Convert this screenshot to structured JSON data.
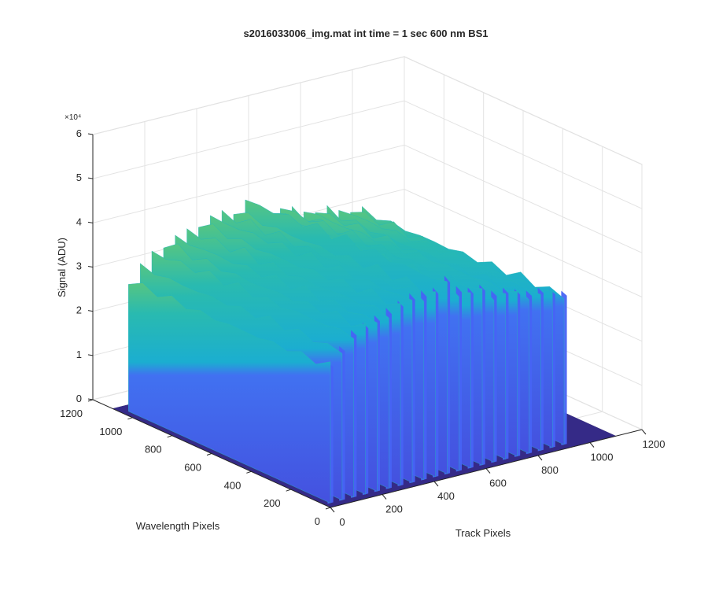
{
  "chart_data": {
    "type": "surface",
    "title": "s2016033006_img.mat int time = 1 sec  600 nm BS1",
    "xlabel": "Track Pixels",
    "ylabel": "Wavelength Pixels",
    "zlabel": "Signal (ADU)",
    "z_exponent_label": "×10⁴",
    "x_ticks": [
      0,
      200,
      400,
      600,
      800,
      1000,
      1200
    ],
    "x_tick_labels": [
      "0",
      "200",
      "400",
      "600",
      "800",
      "1000",
      "1200"
    ],
    "y_ticks": [
      0,
      200,
      400,
      600,
      800,
      1000,
      1200
    ],
    "y_tick_labels": [
      "0",
      "200",
      "400",
      "600",
      "800",
      "1000",
      "1200"
    ],
    "z_ticks": [
      0,
      1,
      2,
      3,
      4,
      5,
      6
    ],
    "z_tick_labels": [
      "0",
      "1",
      "2",
      "3",
      "4",
      "5",
      "6"
    ],
    "xlim": [
      0,
      1200
    ],
    "ylim": [
      0,
      1200
    ],
    "zlim": [
      0,
      6
    ],
    "grid": true,
    "colormap": [
      "#3e26a8",
      "#4764f6",
      "#2f96e1",
      "#1aafcf",
      "#2cbcaa",
      "#6fcb69",
      "#d5c43d",
      "#f9fb15"
    ],
    "floor_color": "#352a87",
    "floor_extent": {
      "x": [
        0,
        1100
      ],
      "y": [
        0,
        1100
      ]
    },
    "fibers": {
      "y_range": [
        0,
        1020
      ],
      "base_level": 0.1,
      "centers_x": [
        0,
        45,
        90,
        135,
        180,
        225,
        270,
        315,
        360,
        405,
        450,
        495,
        540,
        585,
        630,
        675,
        720,
        765,
        810,
        855,
        900
      ],
      "peak_levels": [
        3.3,
        3.6,
        3.9,
        4.0,
        4.1,
        4.2,
        4.3,
        4.4,
        4.4,
        4.4,
        4.6,
        4.3,
        4.2,
        4.2,
        4.0,
        4.0,
        3.9,
        3.8,
        3.8,
        3.7,
        3.6
      ]
    }
  }
}
